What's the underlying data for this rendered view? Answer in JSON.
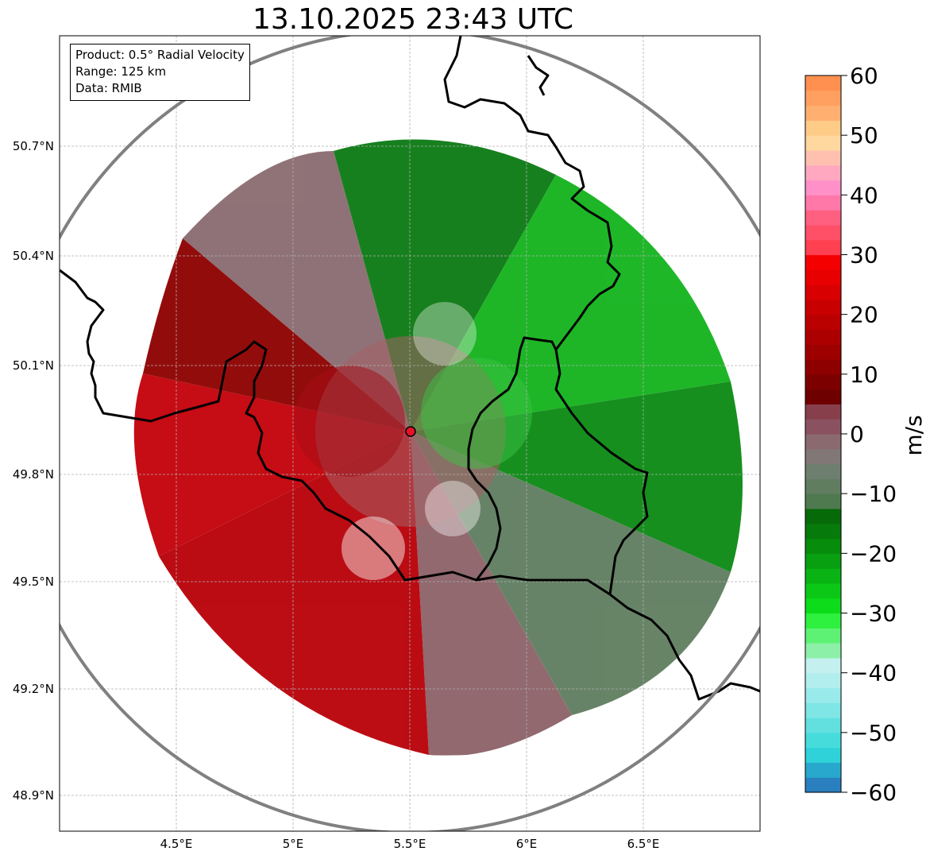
{
  "title": "13.10.2025 23:43 UTC",
  "info": {
    "product": "Product: 0.5° Radial Velocity",
    "range": "Range: 125 km",
    "source": "Data: RMIB"
  },
  "axes": {
    "lat_ticks": [
      "50.7°N",
      "50.4°N",
      "50.1°N",
      "49.8°N",
      "49.5°N",
      "49.2°N",
      "48.9°N"
    ],
    "lon_ticks": [
      "4.5°E",
      "5°E",
      "5.5°E",
      "6°E",
      "6.5°E"
    ]
  },
  "colorbar": {
    "label": "m/s",
    "ticks": [
      "60",
      "50",
      "40",
      "30",
      "20",
      "10",
      "0",
      "−10",
      "−20",
      "−30",
      "−40",
      "−50",
      "−60"
    ],
    "min": -60,
    "max": 60,
    "colors": [
      "#2a7fbf",
      "#27a8cc",
      "#2fd2d8",
      "#47dcdc",
      "#62e0e0",
      "#7fe5e5",
      "#99eaea",
      "#b2eeee",
      "#c4f0f0",
      "#8df0a8",
      "#5ef275",
      "#2ef03e",
      "#0ddc1a",
      "#0bc816",
      "#0ab314",
      "#089f10",
      "#078c0c",
      "#067a0a",
      "#066a08",
      "#4f7a4f",
      "#607d60",
      "#6f7f6f",
      "#827777",
      "#8a6a6e",
      "#8a5260",
      "#873f4c",
      "#6e0000",
      "#7d0000",
      "#8e0000",
      "#9e0000",
      "#ac0000",
      "#bb0000",
      "#c80000",
      "#d80000",
      "#e80000",
      "#f40000",
      "#ff4050",
      "#ff5068",
      "#ff6080",
      "#ff78a8",
      "#ff90c8",
      "#ffa8c0",
      "#ffc0b0",
      "#ffd8a0",
      "#ffcc88",
      "#ffb070",
      "#ffa060",
      "#ff9050"
    ]
  },
  "radar": {
    "site_lon": 5.5,
    "site_lat": 49.915,
    "range_km": 125
  },
  "map_extent": {
    "lon_min": 4.0,
    "lon_max": 7.0,
    "lat_min": 48.8,
    "lat_max": 50.985
  }
}
